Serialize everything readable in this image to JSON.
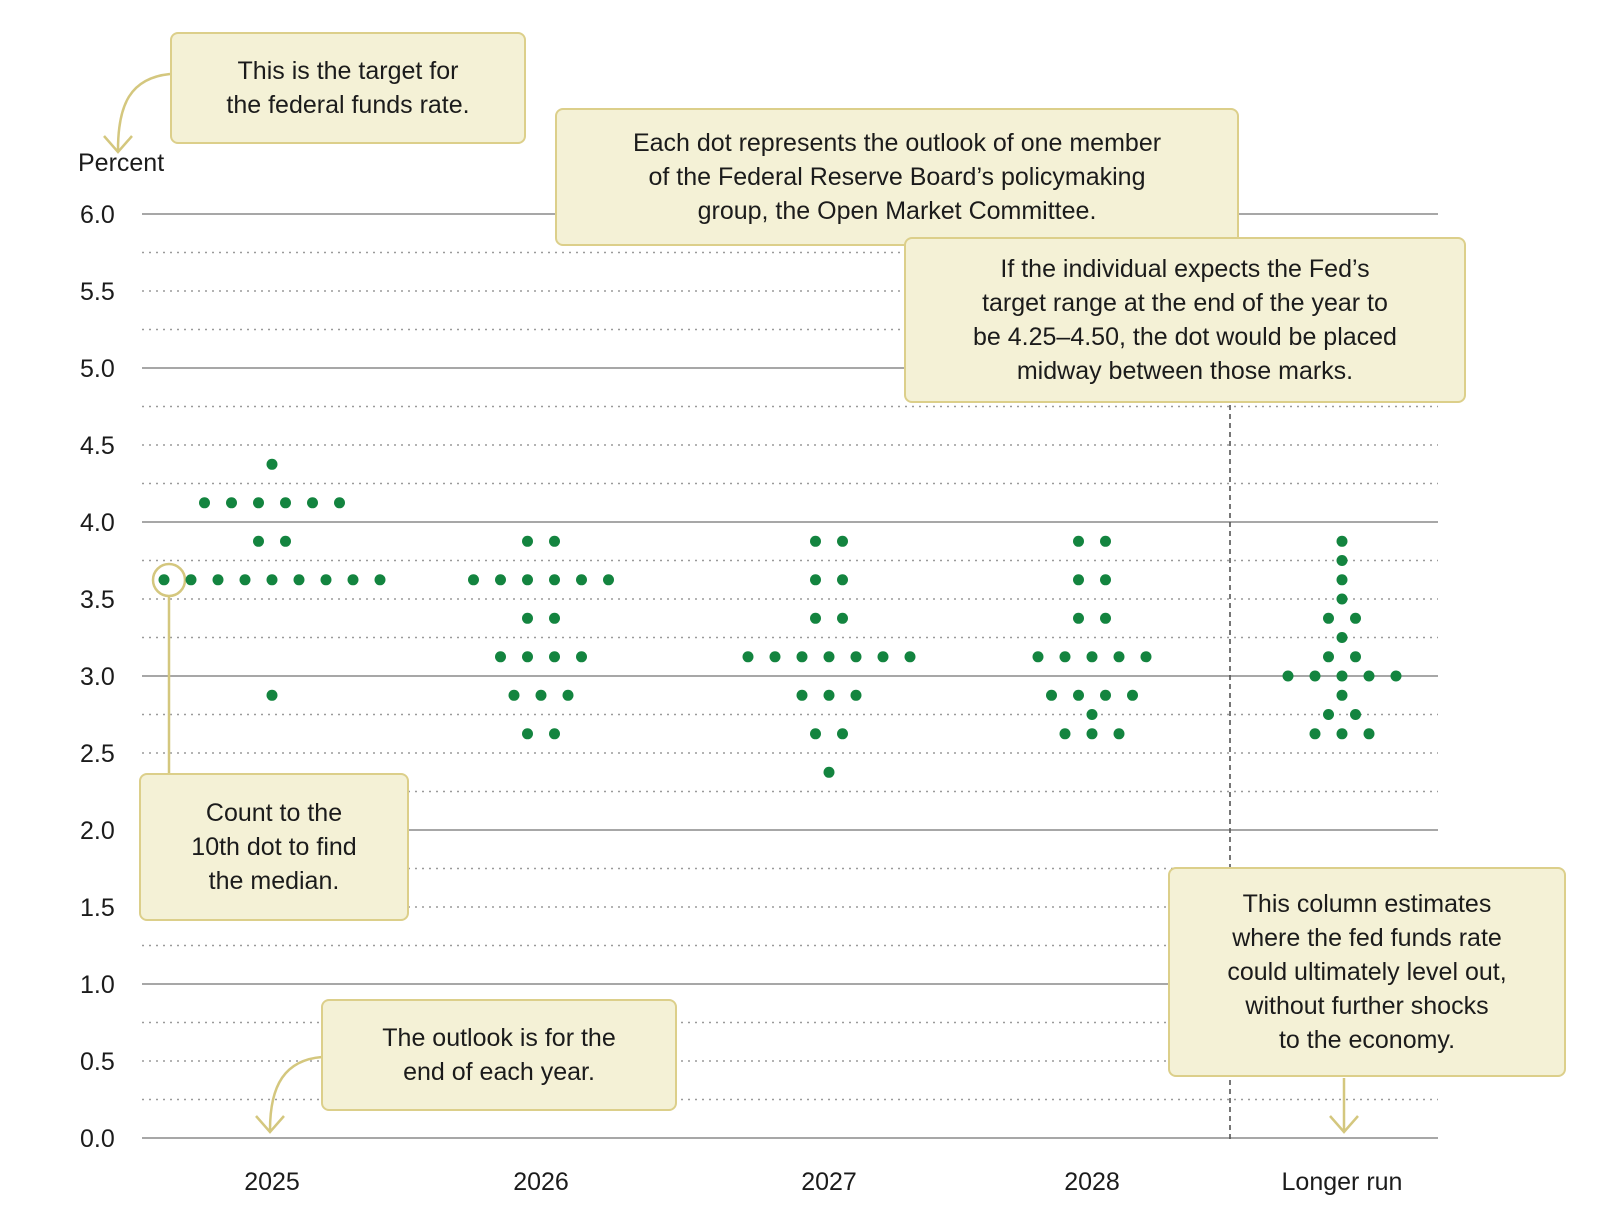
{
  "chart_data": {
    "type": "scatter",
    "title": "",
    "ylabel": "Percent",
    "xlabel": "",
    "ylim": [
      0,
      6
    ],
    "yticks": [
      "0.0",
      "0.5",
      "1.0",
      "1.5",
      "2.0",
      "2.5",
      "3.0",
      "3.5",
      "4.0",
      "4.5",
      "5.0",
      "5.5",
      "6.0"
    ],
    "categories": [
      "2025",
      "2026",
      "2027",
      "2028",
      "Longer run"
    ],
    "series": [
      {
        "name": "2025",
        "values": [
          {
            "y": 4.375,
            "count": 1
          },
          {
            "y": 4.125,
            "count": 6
          },
          {
            "y": 3.875,
            "count": 2
          },
          {
            "y": 3.625,
            "count": 9
          },
          {
            "y": 2.875,
            "count": 1
          }
        ]
      },
      {
        "name": "2026",
        "values": [
          {
            "y": 3.875,
            "count": 2
          },
          {
            "y": 3.625,
            "count": 6
          },
          {
            "y": 3.375,
            "count": 2
          },
          {
            "y": 3.125,
            "count": 4
          },
          {
            "y": 2.875,
            "count": 3
          },
          {
            "y": 2.625,
            "count": 2
          }
        ]
      },
      {
        "name": "2027",
        "values": [
          {
            "y": 3.875,
            "count": 2
          },
          {
            "y": 3.625,
            "count": 2
          },
          {
            "y": 3.375,
            "count": 2
          },
          {
            "y": 3.125,
            "count": 7
          },
          {
            "y": 2.875,
            "count": 3
          },
          {
            "y": 2.625,
            "count": 2
          },
          {
            "y": 2.375,
            "count": 1
          }
        ]
      },
      {
        "name": "2028",
        "values": [
          {
            "y": 3.875,
            "count": 2
          },
          {
            "y": 3.625,
            "count": 2
          },
          {
            "y": 3.375,
            "count": 2
          },
          {
            "y": 3.125,
            "count": 5
          },
          {
            "y": 2.875,
            "count": 4
          },
          {
            "y": 2.75,
            "count": 1
          },
          {
            "y": 2.625,
            "count": 3
          }
        ]
      },
      {
        "name": "Longer run",
        "values": [
          {
            "y": 3.875,
            "count": 1
          },
          {
            "y": 3.75,
            "count": 1
          },
          {
            "y": 3.625,
            "count": 1
          },
          {
            "y": 3.5,
            "count": 1
          },
          {
            "y": 3.375,
            "count": 2
          },
          {
            "y": 3.25,
            "count": 1
          },
          {
            "y": 3.125,
            "count": 2
          },
          {
            "y": 3.0,
            "count": 5
          },
          {
            "y": 2.875,
            "count": 1
          },
          {
            "y": 2.75,
            "count": 2
          },
          {
            "y": 2.625,
            "count": 3
          }
        ]
      }
    ],
    "highlighted_dot": {
      "category": "2025",
      "y": 3.625,
      "index": 0
    },
    "annotations": {
      "target": [
        "This is the target for",
        "the federal funds rate."
      ],
      "dot_meaning": [
        "Each dot represents the outlook of one member",
        "of the Federal Reserve Board’s policymaking",
        "group, the Open Market Committee."
      ],
      "midway": [
        "If the individual expects the Fed’s",
        "target range at the end of the year to",
        "be 4.25–4.50, the dot would be placed",
        "midway between those marks."
      ],
      "median": [
        "Count to the",
        "10th dot to find",
        "the median."
      ],
      "end_of_year": [
        "The outlook is for the",
        "end of each year."
      ],
      "longer_run": [
        "This column estimates",
        "where the fed funds rate",
        "could ultimately level out,",
        "without further shocks",
        "to the economy."
      ]
    },
    "colors": {
      "dot": "#13843f",
      "grid_major": "#8a8a8a",
      "grid_minor": "#9a9a9a",
      "note_bg": "#f4f1d6",
      "note_border": "#dccf8a",
      "arrow": "#d4c77e"
    }
  }
}
